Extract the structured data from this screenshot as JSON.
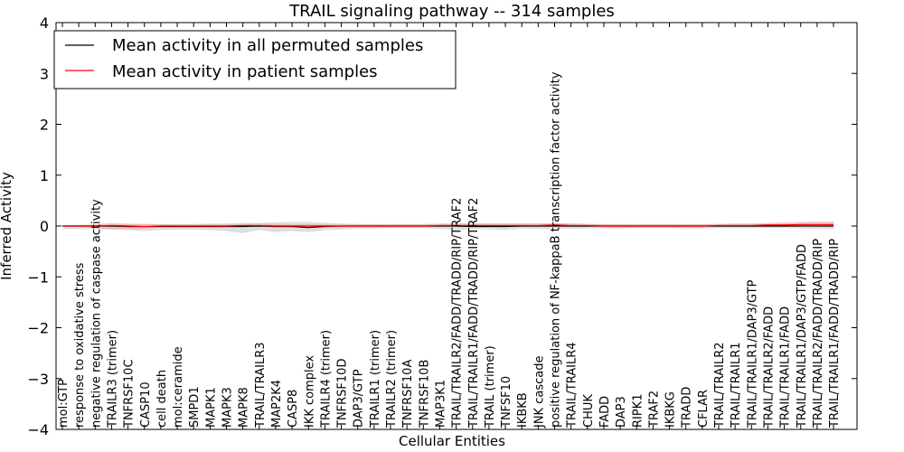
{
  "chart_data": {
    "type": "line",
    "title": "TRAIL signaling pathway -- 314 samples",
    "xlabel": "Cellular Entities",
    "ylabel": "Inferred Activity",
    "ylim": [
      -4,
      4
    ],
    "yticks": [
      -4,
      -3,
      -2,
      -1,
      0,
      1,
      2,
      3,
      4
    ],
    "ytick_labels": [
      "−4",
      "−3",
      "−2",
      "−1",
      "0",
      "1",
      "2",
      "3",
      "4"
    ],
    "legend_position": "top-left",
    "colors": {
      "permuted": "#000000",
      "patient": "#ff0000",
      "band": "#c8c8c8",
      "patient_band": "#f4a0a0"
    },
    "categories": [
      "mol:GTP",
      "response to oxidative stress",
      "negative regulation of caspase activity",
      "TRAILR3 (trimer)",
      "TNFRSF10C",
      "CASP10",
      "cell death",
      "mol:ceramide",
      "SMPD1",
      "MAPK1",
      "MAPK3",
      "MAPK8",
      "TRAIL/TRAILR3",
      "MAP2K4",
      "CASP8",
      "IKK complex",
      "TRAILR4 (trimer)",
      "TNFRSF10D",
      "DAP3/GTP",
      "TRAILR1 (trimer)",
      "TRAILR2 (trimer)",
      "TNFRSF10A",
      "TNFRSF10B",
      "MAP3K1",
      "TRAIL/TRAILR2/FADD/TRADD/RIP/TRAF2",
      "TRAIL/TRAILR1/FADD/TRADD/RIP/TRAF2",
      "TRAIL (trimer)",
      "TNFSF10",
      "IKBKB",
      "JNK cascade",
      "positive regulation of NF-kappaB transcription factor activity",
      "TRAIL/TRAILR4",
      "CHUK",
      "FADD",
      "DAP3",
      "RIPK1",
      "TRAF2",
      "IKBKG",
      "TRADD",
      "CFLAR",
      "TRAIL/TRAILR2",
      "TRAIL/TRAILR1",
      "TRAIL/TRAILR1/DAP3/GTP",
      "TRAIL/TRAILR2/FADD",
      "TRAIL/TRAILR1/FADD",
      "TRAIL/TRAILR1/DAP3/GTP/FADD",
      "TRAIL/TRAILR2/FADD/TRADD/RIP",
      "TRAIL/TRAILR1/FADD/TRADD/RIP"
    ],
    "series": [
      {
        "name": "Mean activity in all permuted samples",
        "color": "#000000",
        "values": [
          0,
          0,
          0,
          0,
          -0.01,
          -0.01,
          -0.01,
          -0.01,
          -0.01,
          -0.01,
          -0.01,
          -0.01,
          0,
          -0.01,
          -0.01,
          -0.03,
          -0.01,
          0,
          0,
          0,
          0,
          0,
          0,
          0,
          0,
          -0.01,
          -0.01,
          -0.01,
          0,
          0,
          0,
          0,
          0,
          0,
          0,
          0,
          0,
          0,
          0,
          0,
          0,
          0,
          0,
          0,
          0,
          0,
          0,
          0
        ],
        "band_upper": [
          0.02,
          0.02,
          0.02,
          0.03,
          0.03,
          0.04,
          0.04,
          0.04,
          0.04,
          0.05,
          0.05,
          0.06,
          0.06,
          0.07,
          0.08,
          0.08,
          0.06,
          0.05,
          0.04,
          0.04,
          0.04,
          0.04,
          0.04,
          0.05,
          0.05,
          0.05,
          0.05,
          0.05,
          0.05,
          0.05,
          0.05,
          0.05,
          0.04,
          0.04,
          0.04,
          0.04,
          0.04,
          0.04,
          0.04,
          0.04,
          0.04,
          0.04,
          0.04,
          0.04,
          0.04,
          0.04,
          0.04,
          0.04
        ],
        "band_lower": [
          -0.06,
          -0.06,
          -0.06,
          -0.07,
          -0.08,
          -0.1,
          -0.08,
          -0.07,
          -0.07,
          -0.08,
          -0.1,
          -0.14,
          -0.08,
          -0.12,
          -0.1,
          -0.12,
          -0.08,
          -0.07,
          -0.05,
          -0.05,
          -0.04,
          -0.04,
          -0.04,
          -0.06,
          -0.08,
          -0.06,
          -0.06,
          -0.08,
          -0.05,
          -0.06,
          -0.06,
          -0.05,
          -0.05,
          -0.05,
          -0.05,
          -0.04,
          -0.04,
          -0.04,
          -0.05,
          -0.05,
          -0.04,
          -0.04,
          -0.04,
          -0.04,
          -0.04,
          -0.05,
          -0.06,
          -0.06
        ]
      },
      {
        "name": "Mean activity in patient samples",
        "color": "#ff0000",
        "values": [
          0,
          0,
          0,
          0.01,
          0,
          -0.01,
          0,
          0,
          0,
          0,
          0,
          0.01,
          0.01,
          0,
          0,
          0,
          0,
          0,
          0,
          0,
          0,
          0,
          0,
          0.01,
          0.01,
          0.01,
          0.01,
          0.01,
          0.01,
          0.01,
          0.02,
          0.01,
          0.01,
          0,
          0,
          0,
          0,
          0,
          0,
          0,
          0.01,
          0.01,
          0.01,
          0.02,
          0.02,
          0.03,
          0.03,
          0.03
        ],
        "band_upper": [
          0.01,
          0.02,
          0.03,
          0.06,
          0.05,
          0.04,
          0.03,
          0.03,
          0.03,
          0.03,
          0.03,
          0.04,
          0.05,
          0.04,
          0.03,
          0.03,
          0.03,
          0.03,
          0.03,
          0.03,
          0.03,
          0.03,
          0.03,
          0.04,
          0.05,
          0.05,
          0.05,
          0.05,
          0.05,
          0.05,
          0.06,
          0.05,
          0.04,
          0.03,
          0.03,
          0.03,
          0.03,
          0.03,
          0.03,
          0.03,
          0.04,
          0.05,
          0.05,
          0.06,
          0.07,
          0.08,
          0.09,
          0.09
        ],
        "band_lower": [
          -0.01,
          -0.02,
          -0.04,
          -0.06,
          -0.06,
          -0.05,
          -0.03,
          -0.03,
          -0.03,
          -0.03,
          -0.03,
          -0.02,
          -0.02,
          -0.03,
          -0.03,
          -0.03,
          -0.03,
          -0.03,
          -0.03,
          -0.03,
          -0.03,
          -0.03,
          -0.03,
          -0.02,
          -0.02,
          -0.02,
          -0.02,
          -0.02,
          -0.02,
          -0.02,
          -0.01,
          -0.02,
          -0.02,
          -0.03,
          -0.03,
          -0.03,
          -0.03,
          -0.03,
          -0.03,
          -0.03,
          -0.02,
          -0.02,
          -0.02,
          -0.02,
          -0.02,
          -0.01,
          -0.01,
          -0.01
        ]
      }
    ]
  }
}
